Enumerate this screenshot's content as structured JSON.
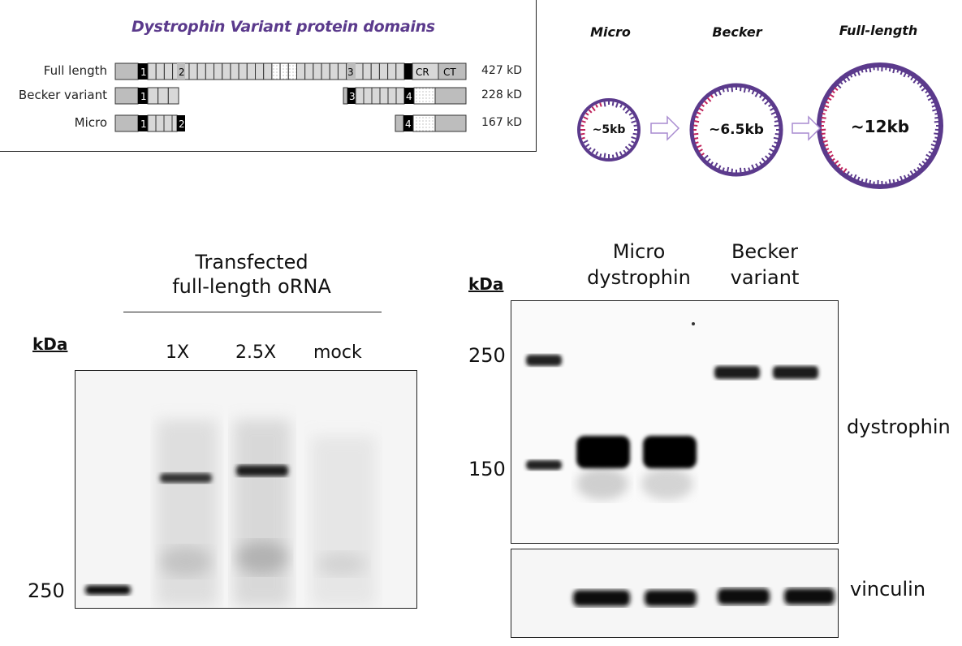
{
  "domains_panel": {
    "title": "Dystrophin Variant protein domains",
    "rows": [
      {
        "label": "Full length",
        "size": "427 kD"
      },
      {
        "label": "Becker variant",
        "size": "228 kD"
      },
      {
        "label": "Micro",
        "size": "167 kD"
      }
    ],
    "hinges": {
      "h1": "1",
      "h2": "2",
      "h3": "3",
      "h4": "4"
    },
    "domains": {
      "cr": "CR",
      "ct": "CT"
    }
  },
  "plasmids_panel": {
    "constructs": [
      {
        "title": "Micro",
        "size": "~5kb"
      },
      {
        "title": "Becker",
        "size": "~6.5kb"
      },
      {
        "title": "Full-length",
        "size": "~12kb"
      }
    ],
    "colors": {
      "ring": "#5b3a8c",
      "accent": "#c0245c",
      "arrow": "#a98cd0"
    }
  },
  "left_blot": {
    "header_line1": "Transfected",
    "header_line2": "full-length oRNA",
    "kda_label": "kDa",
    "lanes": [
      "1X",
      "2.5X",
      "mock"
    ],
    "marker": "250"
  },
  "right_blot": {
    "kda_label": "kDa",
    "group1_line1": "Micro",
    "group1_line2": "dystrophin",
    "group2_line1": "Becker",
    "group2_line2": "variant",
    "marker_top": "250",
    "marker_bottom": "150",
    "label_top": "dystrophin",
    "label_bottom": "vinculin"
  }
}
